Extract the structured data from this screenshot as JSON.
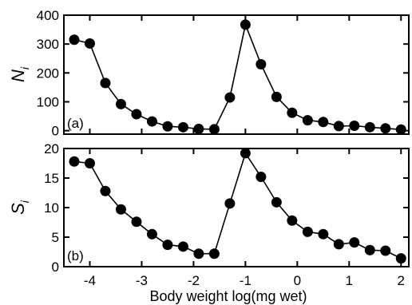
{
  "chart_data": [
    {
      "type": "line",
      "panel_label": "(a)",
      "ylabel": "N",
      "ylabel_subscript": "i",
      "xlim": [
        -4.5,
        2.15
      ],
      "ylim": [
        -12,
        400
      ],
      "yticks": [
        0,
        100,
        200,
        300,
        400
      ],
      "ytick_labels": [
        "0",
        "100",
        "200",
        "300",
        "400"
      ],
      "series": [
        {
          "x": [
            -4.3,
            -4.0,
            -3.7,
            -3.4,
            -3.1,
            -2.8,
            -2.5,
            -2.2,
            -1.9,
            -1.6,
            -1.3,
            -1.0,
            -0.7,
            -0.4,
            -0.1,
            0.2,
            0.5,
            0.8,
            1.1,
            1.4,
            1.7,
            2.0
          ],
          "y": [
            315,
            302,
            165,
            92,
            57,
            32,
            15,
            12,
            6,
            5,
            115,
            367,
            230,
            117,
            62,
            36,
            30,
            16,
            17,
            12,
            8,
            4
          ]
        }
      ]
    },
    {
      "type": "line",
      "panel_label": "(b)",
      "ylabel": "S",
      "ylabel_subscript": "i",
      "xlabel": "Body weight log(mg wet)",
      "xlim": [
        -4.5,
        2.15
      ],
      "ylim": [
        0,
        20
      ],
      "yticks": [
        0,
        5,
        10,
        15,
        20
      ],
      "ytick_labels": [
        "0",
        "5",
        "10",
        "15",
        "20"
      ],
      "xticks": [
        -4,
        -3,
        -2,
        -1,
        0,
        1,
        2
      ],
      "xtick_labels": [
        "-4",
        "-3",
        "-2",
        "-1",
        "0",
        "1",
        "2"
      ],
      "series": [
        {
          "x": [
            -4.3,
            -4.0,
            -3.7,
            -3.4,
            -3.1,
            -2.8,
            -2.5,
            -2.2,
            -1.9,
            -1.6,
            -1.3,
            -1.0,
            -0.7,
            -0.4,
            -0.1,
            0.2,
            0.5,
            0.8,
            1.1,
            1.4,
            1.7,
            2.0
          ],
          "y": [
            17.8,
            17.5,
            12.8,
            9.7,
            7.6,
            5.5,
            3.7,
            3.4,
            2.2,
            2.2,
            10.7,
            19.2,
            15.2,
            10.9,
            7.8,
            5.9,
            5.5,
            3.8,
            4.1,
            2.8,
            2.7,
            1.4
          ]
        }
      ]
    }
  ]
}
